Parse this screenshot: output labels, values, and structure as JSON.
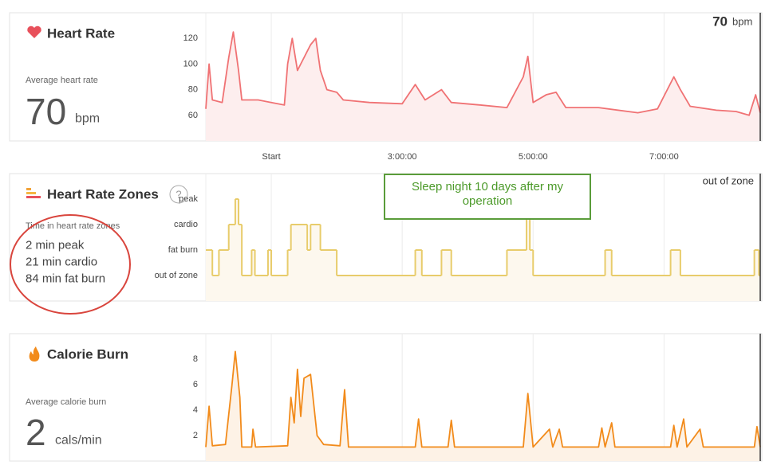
{
  "chart_data": [
    {
      "type": "line",
      "title": "Heart Rate",
      "color": "#f07274",
      "fill": "#fdeeee",
      "readout": {
        "value": "70",
        "unit": "bpm"
      },
      "xlim": [
        0,
        8.47
      ],
      "xticks": [
        {
          "value": 1,
          "label": "Start"
        },
        {
          "value": 3,
          "label": "3:00:00"
        },
        {
          "value": 5,
          "label": "5:00:00"
        },
        {
          "value": 7,
          "label": "7:00:00"
        }
      ],
      "ylim": [
        40,
        140
      ],
      "yticks": [
        60,
        80,
        100,
        120
      ],
      "x": [
        0.0,
        0.05,
        0.1,
        0.25,
        0.35,
        0.42,
        0.5,
        0.55,
        0.8,
        1.0,
        1.2,
        1.25,
        1.32,
        1.4,
        1.5,
        1.6,
        1.68,
        1.75,
        1.85,
        2.0,
        2.1,
        2.5,
        3.0,
        3.2,
        3.35,
        3.6,
        3.75,
        4.2,
        4.6,
        4.85,
        4.92,
        5.0,
        5.2,
        5.35,
        5.5,
        6.0,
        6.6,
        6.9,
        7.15,
        7.25,
        7.4,
        7.8,
        8.1,
        8.3,
        8.4,
        8.47
      ],
      "values": [
        65,
        100,
        72,
        70,
        105,
        125,
        95,
        72,
        72,
        70,
        68,
        100,
        120,
        95,
        105,
        115,
        120,
        95,
        80,
        78,
        72,
        70,
        69,
        84,
        72,
        80,
        70,
        68,
        66,
        90,
        106,
        70,
        76,
        78,
        66,
        66,
        62,
        65,
        90,
        80,
        67,
        64,
        63,
        60,
        76,
        62
      ]
    },
    {
      "type": "line",
      "drawstyle": "steps-post",
      "title": "Heart Rate Zones",
      "color": "#e8cc6b",
      "fill": "#fdf8ee",
      "readout": "out of zone",
      "xlim": [
        0,
        8.47
      ],
      "ylim": [
        -1,
        4
      ],
      "yticks": [
        {
          "value": 0,
          "label": "out of zone"
        },
        {
          "value": 1,
          "label": "fat burn"
        },
        {
          "value": 2,
          "label": "cardio"
        },
        {
          "value": 3,
          "label": "peak"
        }
      ],
      "x": [
        0,
        0.1,
        0.2,
        0.35,
        0.45,
        0.5,
        0.55,
        0.7,
        0.75,
        0.95,
        1.0,
        1.25,
        1.3,
        1.55,
        1.6,
        1.75,
        2.0,
        3.2,
        3.3,
        3.6,
        3.75,
        4.6,
        4.9,
        4.95,
        5.0,
        6.1,
        6.2,
        7.1,
        7.25,
        8.38,
        8.45
      ],
      "values": [
        1,
        0,
        1,
        2,
        3,
        2,
        0,
        1,
        0,
        1,
        0,
        1,
        2,
        1,
        2,
        1,
        0,
        1,
        0,
        1,
        0,
        1,
        3,
        1,
        0,
        1,
        0,
        1,
        0,
        1,
        0
      ]
    },
    {
      "type": "line",
      "title": "Calorie Burn",
      "color": "#f28b1b",
      "fill": "#fdf2e6",
      "xlim": [
        0,
        8.47
      ],
      "ylim": [
        0,
        10
      ],
      "yticks": [
        2,
        4,
        6,
        8
      ],
      "x": [
        0,
        0.05,
        0.1,
        0.3,
        0.4,
        0.45,
        0.52,
        0.55,
        0.7,
        0.72,
        0.76,
        1.25,
        1.3,
        1.35,
        1.4,
        1.45,
        1.5,
        1.6,
        1.7,
        1.8,
        2.05,
        2.12,
        2.18,
        3.2,
        3.25,
        3.3,
        3.7,
        3.75,
        3.8,
        4.85,
        4.92,
        5.0,
        5.25,
        5.3,
        5.4,
        5.45,
        6.0,
        6.05,
        6.1,
        6.2,
        6.25,
        7.1,
        7.15,
        7.2,
        7.3,
        7.35,
        7.55,
        7.6,
        8.38,
        8.42,
        8.47
      ],
      "values": [
        1.1,
        4.3,
        1.2,
        1.3,
        6,
        8.6,
        5,
        1.1,
        1.1,
        2.5,
        1.1,
        1.2,
        5,
        3,
        7.2,
        3.5,
        6.5,
        6.8,
        2,
        1.3,
        1.2,
        5.6,
        1.1,
        1.1,
        3.3,
        1.1,
        1.1,
        3.2,
        1.1,
        1.1,
        5.3,
        1.1,
        2.5,
        1.1,
        2.5,
        1.1,
        1.1,
        2.6,
        1.1,
        3,
        1.1,
        1.1,
        2.8,
        1.1,
        3.3,
        1.1,
        2.5,
        1.1,
        1.1,
        2.7,
        1.1
      ]
    }
  ],
  "panels": {
    "heart": {
      "caption": "Average heart rate",
      "value": "70",
      "unit": "bpm"
    },
    "zones": {
      "help": "?",
      "caption": "Time in heart rate zones",
      "lines": [
        "2 min peak",
        "21 min cardio",
        "84 min fat burn"
      ]
    },
    "calories": {
      "caption": "Average calorie burn",
      "value": "2",
      "unit": "cals/min"
    }
  },
  "annotation": "Sleep night 10 days after my operation"
}
